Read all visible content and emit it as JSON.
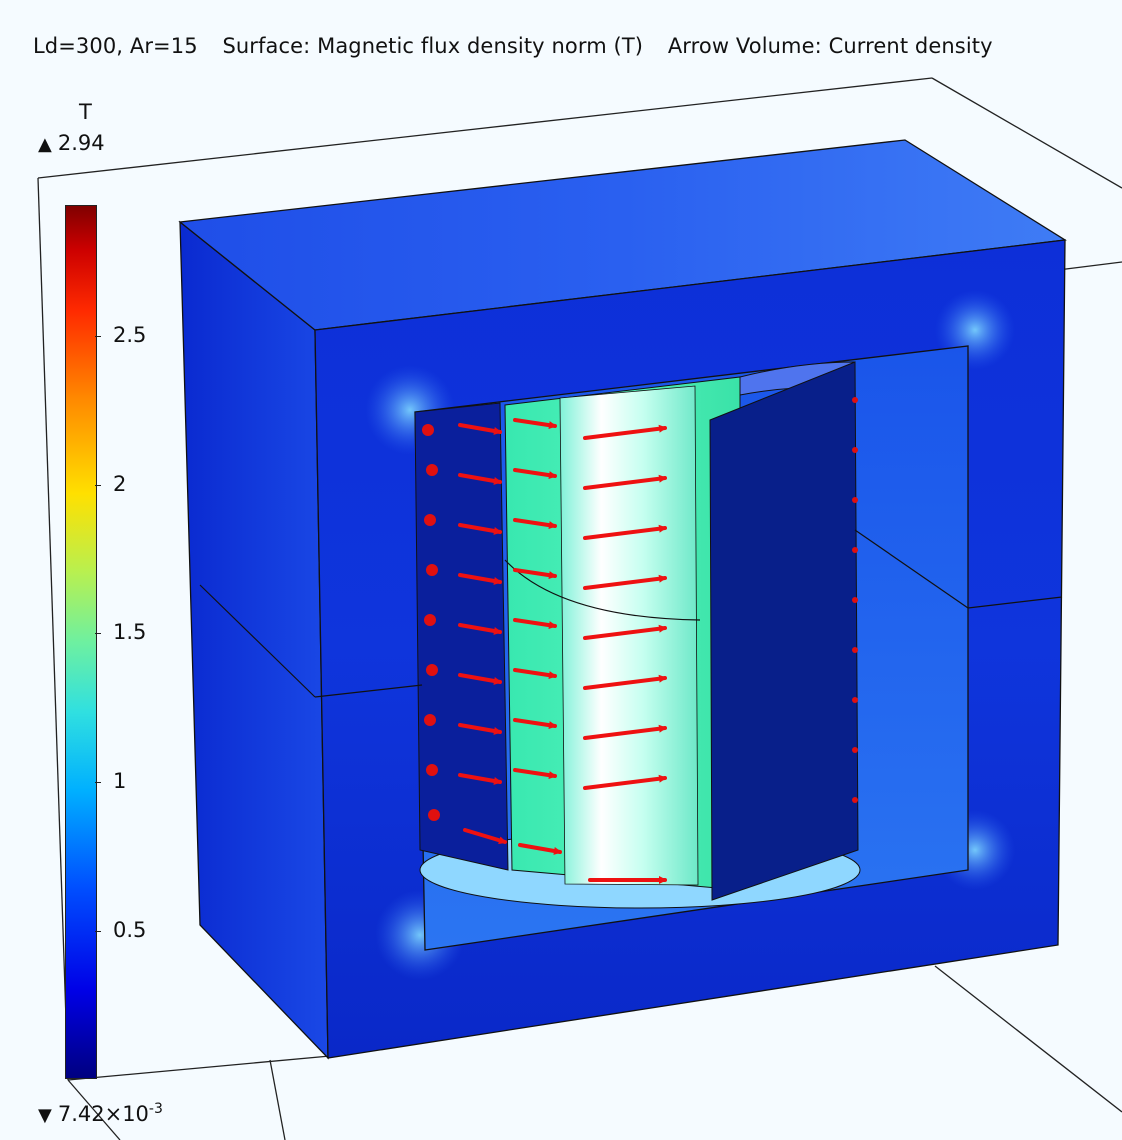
{
  "plot": {
    "title_parts": [
      "Ld=300, Ar=15",
      "Surface: Magnetic flux density norm (T)",
      "Arrow Volume: Current density"
    ]
  },
  "colorbar": {
    "unit": "T",
    "max_label": "2.94",
    "min_label_mantissa": "7.42×10",
    "min_label_exponent": "-3",
    "ticks": [
      "2.5",
      "2",
      "1.5",
      "1",
      "0.5"
    ],
    "tick_values": [
      2.5,
      2.0,
      1.5,
      1.0,
      0.5
    ],
    "range": [
      0.00742,
      2.94
    ],
    "colors": [
      "#000080",
      "#0000e6",
      "#00b0ff",
      "#6ef0a0",
      "#ffe000",
      "#ff2a00",
      "#800000"
    ]
  },
  "scene": {
    "arrow_color": "#ee1111",
    "core_color": "#0a2fd6",
    "coil_color": "#3ff0b0"
  }
}
